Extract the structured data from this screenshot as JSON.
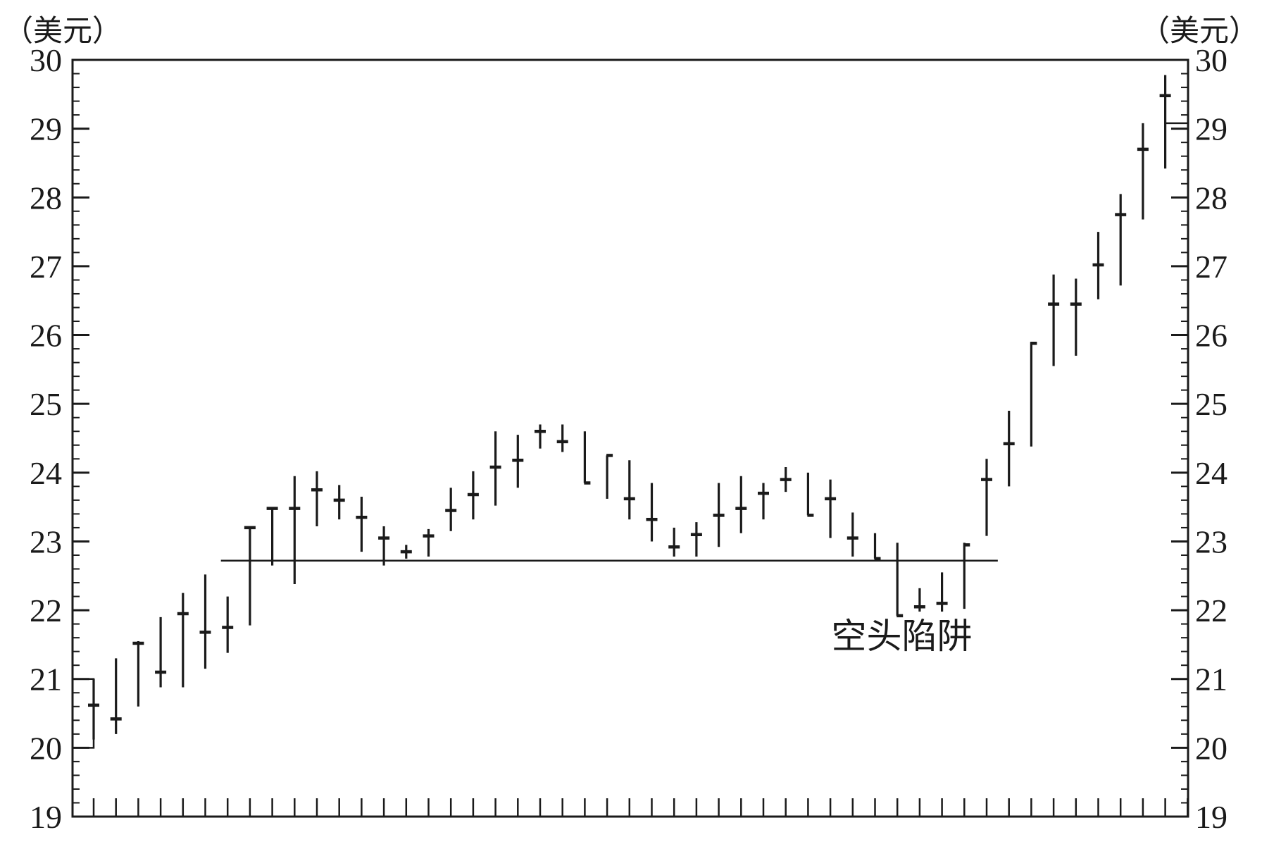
{
  "chart_data": {
    "type": "bar",
    "subtype": "ohlc",
    "title": "",
    "xlabel": "",
    "ylabel_left": "（美元）",
    "ylabel_right": "（美元）",
    "ylim": [
      19,
      30
    ],
    "yticks": [
      19,
      20,
      21,
      22,
      23,
      24,
      25,
      26,
      27,
      28,
      29,
      30
    ],
    "dual_y_axis": true,
    "grid": false,
    "x_tick_count": 50,
    "bars": [
      {
        "high": 21.0,
        "low": 20.12,
        "close": 20.62
      },
      {
        "high": 21.3,
        "low": 20.2,
        "close": 20.42
      },
      {
        "high": 21.55,
        "low": 20.6,
        "close": 21.52
      },
      {
        "high": 21.9,
        "low": 20.88,
        "close": 21.1
      },
      {
        "high": 22.25,
        "low": 20.88,
        "close": 21.95
      },
      {
        "high": 22.52,
        "low": 21.15,
        "close": 21.68
      },
      {
        "high": 22.2,
        "low": 21.38,
        "close": 21.75
      },
      {
        "high": 23.22,
        "low": 21.78,
        "close": 23.2
      },
      {
        "high": 23.5,
        "low": 22.65,
        "close": 23.48
      },
      {
        "high": 23.95,
        "low": 22.38,
        "close": 23.48
      },
      {
        "high": 24.02,
        "low": 23.22,
        "close": 23.75
      },
      {
        "high": 23.82,
        "low": 23.32,
        "close": 23.6
      },
      {
        "high": 23.65,
        "low": 22.85,
        "close": 23.35
      },
      {
        "high": 23.22,
        "low": 22.65,
        "close": 23.05
      },
      {
        "high": 22.95,
        "low": 22.75,
        "close": 22.85
      },
      {
        "high": 23.18,
        "low": 22.78,
        "close": 23.08
      },
      {
        "high": 23.78,
        "low": 23.15,
        "close": 23.45
      },
      {
        "high": 24.02,
        "low": 23.32,
        "close": 23.68
      },
      {
        "high": 24.6,
        "low": 23.52,
        "close": 24.08
      },
      {
        "high": 24.55,
        "low": 23.78,
        "close": 24.18
      },
      {
        "high": 24.7,
        "low": 24.35,
        "close": 24.6
      },
      {
        "high": 24.7,
        "low": 24.3,
        "close": 24.45
      },
      {
        "high": 24.6,
        "low": 23.85,
        "close": 23.85,
        "close_only": true
      },
      {
        "high": 24.25,
        "low": 23.62,
        "close": 24.25,
        "close_only": true
      },
      {
        "high": 24.18,
        "low": 23.32,
        "close": 23.62
      },
      {
        "high": 23.85,
        "low": 23.0,
        "close": 23.32
      },
      {
        "high": 23.2,
        "low": 22.78,
        "close": 22.92
      },
      {
        "high": 23.28,
        "low": 22.78,
        "close": 23.1
      },
      {
        "high": 23.85,
        "low": 22.92,
        "close": 23.38
      },
      {
        "high": 23.95,
        "low": 23.12,
        "close": 23.48
      },
      {
        "high": 23.85,
        "low": 23.32,
        "close": 23.7
      },
      {
        "high": 24.08,
        "low": 23.72,
        "close": 23.9
      },
      {
        "high": 24.0,
        "low": 23.38,
        "close": 23.38,
        "close_only": true
      },
      {
        "high": 23.9,
        "low": 23.05,
        "close": 23.62
      },
      {
        "high": 23.42,
        "low": 22.78,
        "close": 23.05
      },
      {
        "high": 23.12,
        "low": 22.75,
        "close": 22.75,
        "close_only": true
      },
      {
        "high": 22.98,
        "low": 21.92,
        "close": 21.92,
        "close_only": true
      },
      {
        "high": 22.32,
        "low": 21.98,
        "close": 22.05
      },
      {
        "high": 22.55,
        "low": 21.98,
        "close": 22.1
      },
      {
        "high": 22.98,
        "low": 22.02,
        "close": 22.95,
        "close_only": true
      },
      {
        "high": 24.2,
        "low": 23.08,
        "close": 23.9
      },
      {
        "high": 24.9,
        "low": 23.8,
        "close": 24.42
      },
      {
        "high": 25.9,
        "low": 24.38,
        "close": 25.88,
        "close_only": true
      },
      {
        "high": 26.88,
        "low": 25.55,
        "close": 26.45
      },
      {
        "high": 26.82,
        "low": 25.7,
        "close": 26.45
      },
      {
        "high": 27.5,
        "low": 26.52,
        "close": 27.02
      },
      {
        "high": 28.05,
        "low": 26.72,
        "close": 27.75
      },
      {
        "high": 29.08,
        "low": 27.68,
        "close": 28.7
      },
      {
        "high": 29.78,
        "low": 28.42,
        "close": 29.48
      }
    ],
    "start_marker": {
      "value": 21.0,
      "to": 20.0
    },
    "end_marker": {
      "value": 29.08
    },
    "support_line": {
      "value": 22.72,
      "from_bar": 5.7,
      "to_bar": 40.5
    },
    "annotations": [
      {
        "text": "空头陷阱",
        "anchor_bar": 36.2,
        "anchor_value": 21.45
      }
    ]
  }
}
